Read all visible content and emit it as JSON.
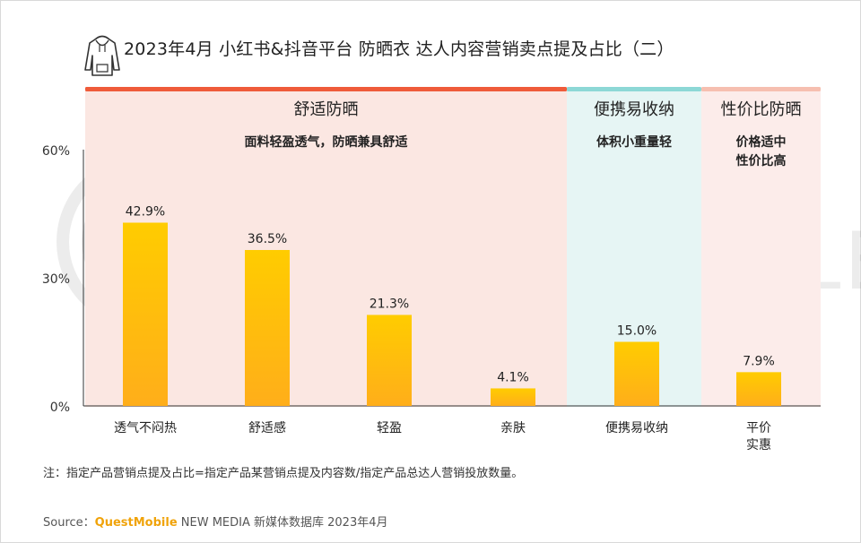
{
  "title": "2023年4月 小红书&抖音平台 防晒衣  达人内容营销卖点提及占比（二）",
  "watermark": "QUEST MOBILE",
  "note": "注：指定产品营销点提及占比=指定产品某营销点提及内容数/指定产品总达人营销投放数量。",
  "source": {
    "label": "Source：",
    "brand": "QuestMobile",
    "rest": " NEW MEDIA 新媒体数据库 2023年4月"
  },
  "colors": {
    "group1_bar": "#ef5b3a",
    "group1_bg": "#fbe7e2",
    "group2_bar": "#8dd8d6",
    "group2_bg": "#e6f5f4",
    "group3_bar": "#f6bfb0",
    "group3_bg": "#fcecea",
    "bar_top": "#ffcc00",
    "bar_bottom": "#ffae1a"
  },
  "groups": [
    {
      "name": "舒适防晒",
      "subtitle": [
        "面料轻盈透气，防晒兼具舒适"
      ]
    },
    {
      "name": "便携易收纳",
      "subtitle": [
        "体积小重量轻"
      ]
    },
    {
      "name": "性价比防晒",
      "subtitle": [
        "价格适中",
        "性价比高"
      ]
    }
  ],
  "chart_data": {
    "type": "bar",
    "categories": [
      "透气不闷热",
      "舒适感",
      "轻盈",
      "亲肤",
      "便携易收纳",
      "平价\n实惠"
    ],
    "values": [
      42.9,
      36.5,
      21.3,
      4.1,
      15.0,
      7.9
    ],
    "value_labels": [
      "42.9%",
      "36.5%",
      "21.3%",
      "4.1%",
      "15.0%",
      "7.9%"
    ],
    "group_of_category": [
      0,
      0,
      0,
      0,
      1,
      2
    ],
    "ylim": [
      0,
      60
    ],
    "yticks": [
      0,
      30,
      60
    ],
    "ytick_labels": [
      "0%",
      "30%",
      "60%"
    ],
    "unit": "%"
  }
}
